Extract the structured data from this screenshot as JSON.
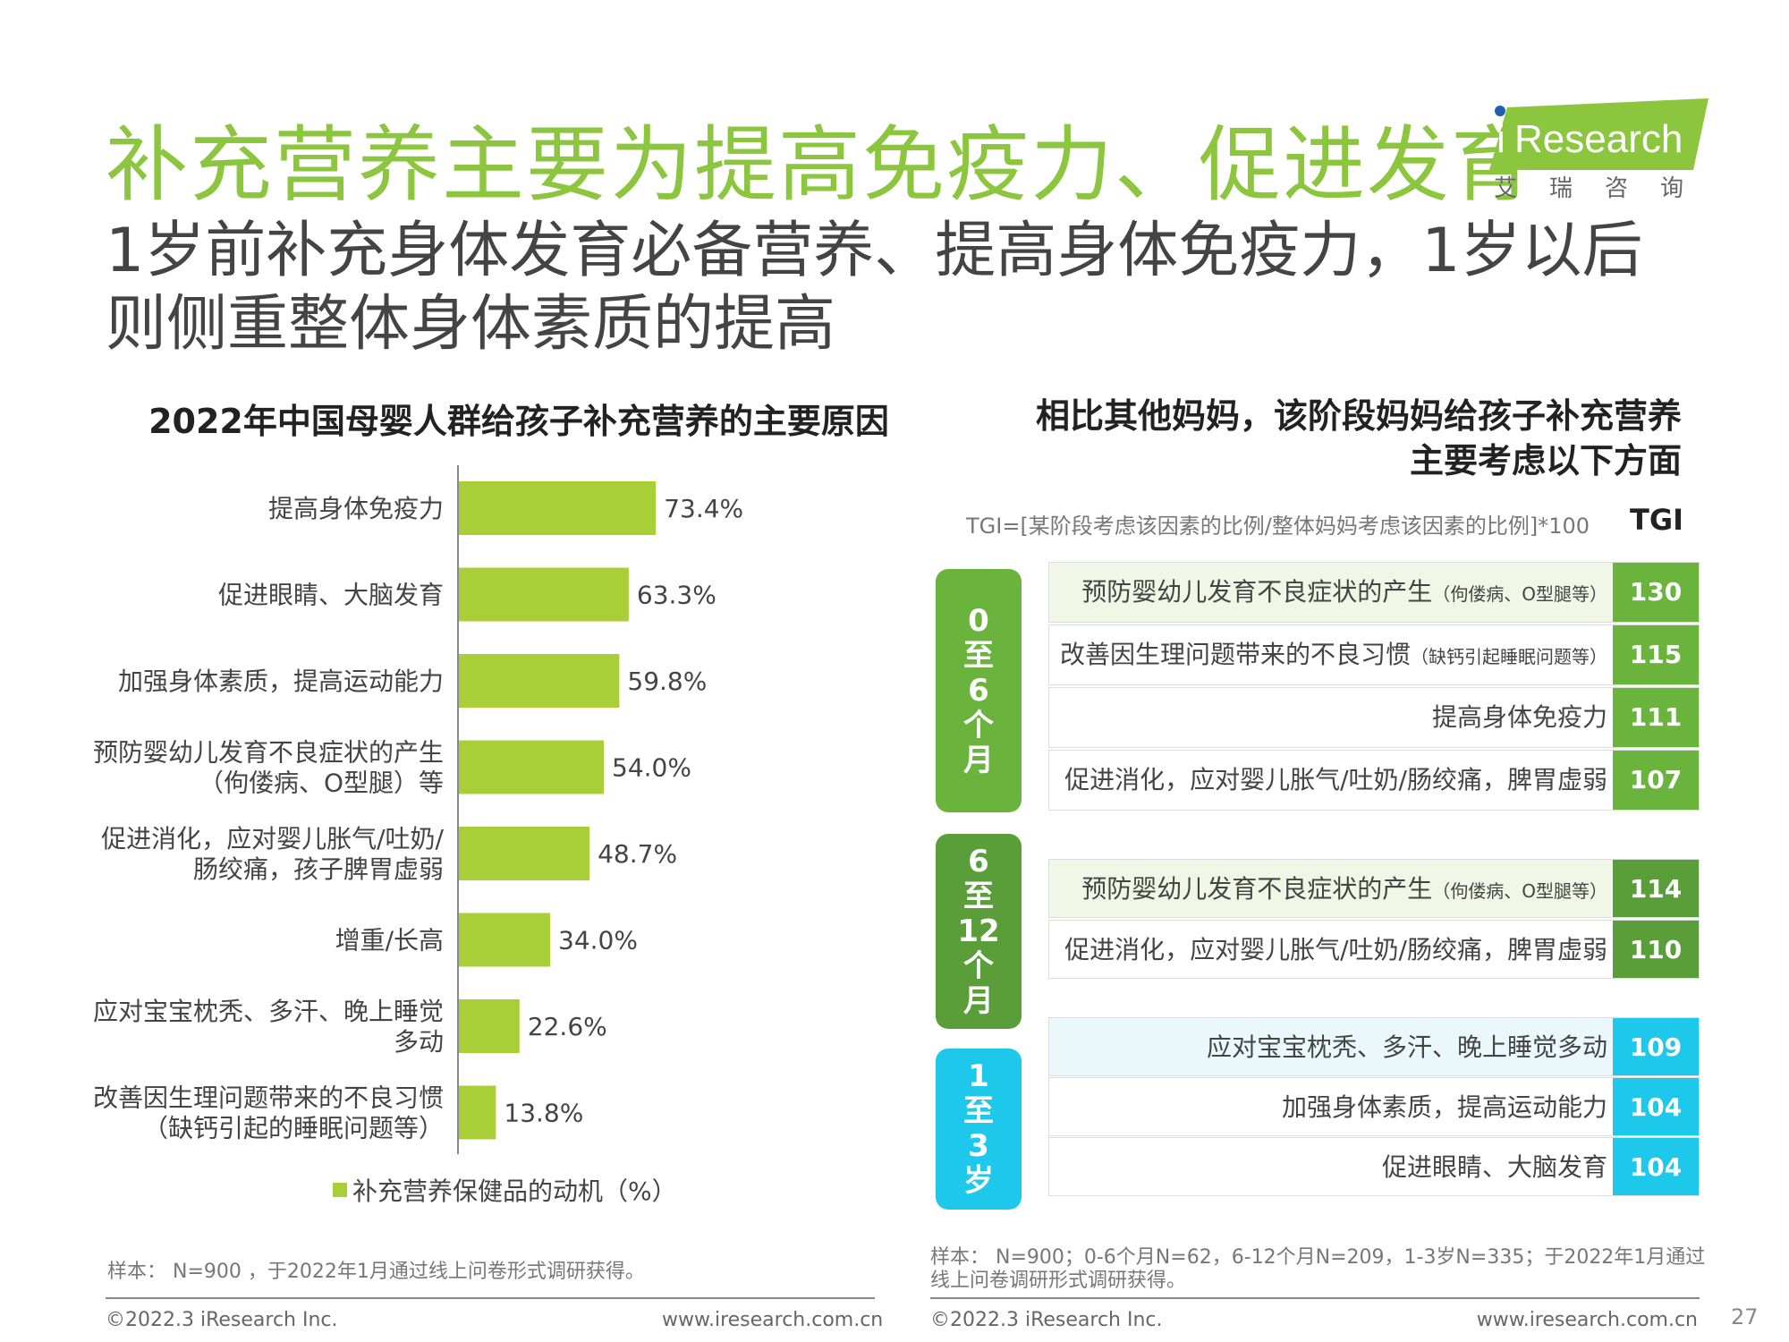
{
  "title": "补充营养主要为提高免疫力、促进发育",
  "subtitle": "1岁前补充身体发育必备营养、提高身体免疫力，1岁以后则侧重整体身体素质的提高",
  "logo": {
    "brand": "Research",
    "brand_i": "i",
    "cn": "艾瑞咨询"
  },
  "left_title": "2022年中国母婴人群给孩子补充营养的主要原因",
  "chart_data": {
    "type": "bar",
    "orientation": "horizontal",
    "categories": [
      [
        "提高身体免疫力"
      ],
      [
        "促进眼睛、大脑发育"
      ],
      [
        "加强身体素质，提高运动能力"
      ],
      [
        "预防婴幼儿发育不良症状的产生",
        "（佝偻病、O型腿）等"
      ],
      [
        "促进消化，应对婴儿胀气/吐奶/",
        "肠绞痛，孩子脾胃虚弱"
      ],
      [
        "增重/长高"
      ],
      [
        "应对宝宝枕秃、多汗、晚上睡觉",
        "多动"
      ],
      [
        "改善因生理问题带来的不良习惯",
        "（缺钙引起的睡眠问题等）"
      ]
    ],
    "values": [
      73.4,
      63.3,
      59.8,
      54.0,
      48.7,
      34.0,
      22.6,
      13.8
    ],
    "value_labels": [
      "73.4%",
      "63.3%",
      "59.8%",
      "54.0%",
      "48.7%",
      "34.0%",
      "22.6%",
      "13.8%"
    ],
    "series": [
      {
        "name": "补充营养保健品的动机（%）",
        "color": "#a9cf38"
      }
    ],
    "xlim": [
      0,
      100
    ],
    "legend_position": "bottom"
  },
  "right_title_line1": "相比其他妈妈，该阶段妈妈给孩子补充营养",
  "right_title_line2": "主要考虑以下方面",
  "tgi_formula": "TGI=[某阶段考虑该因素的比例/整体妈妈考虑该因素的比例]*100",
  "tgi_header": "TGI",
  "stages": [
    {
      "label": "0至6个月",
      "chars": [
        "0",
        "至",
        "6",
        "个",
        "月"
      ],
      "color": "#6ab43e",
      "num_color": "#6ab43e",
      "row_bg": [
        "#f0f7e6",
        "#ffffff",
        "#ffffff",
        "#ffffff"
      ],
      "rows": [
        {
          "text": "预防婴幼儿发育不良症状的产生",
          "small": "（佝偻病、O型腿等）",
          "tgi": "130"
        },
        {
          "text": "改善因生理问题带来的不良习惯",
          "small": "（缺钙引起睡眠问题等）",
          "tgi": "115"
        },
        {
          "text": "提高身体免疫力",
          "small": "",
          "tgi": "111"
        },
        {
          "text": "促进消化，应对婴儿胀气/吐奶/肠绞痛，脾胃虚弱",
          "small": "",
          "tgi": "107"
        }
      ]
    },
    {
      "label": "6至12个月",
      "chars": [
        "6",
        "至",
        "12",
        "个",
        "月"
      ],
      "color": "#5a9e3a",
      "num_color": "#5a9e3a",
      "row_bg": [
        "#f0f7e6",
        "#ffffff"
      ],
      "rows": [
        {
          "text": "预防婴幼儿发育不良症状的产生",
          "small": "（佝偻病、O型腿等）",
          "tgi": "114"
        },
        {
          "text": "促进消化，应对婴儿胀气/吐奶/肠绞痛，脾胃虚弱",
          "small": "",
          "tgi": "110"
        }
      ]
    },
    {
      "label": "1至3岁",
      "chars": [
        "1",
        "至",
        "3",
        "岁"
      ],
      "color": "#1ec8ea",
      "num_color": "#1ec8ea",
      "row_bg": [
        "#eaf8fc",
        "#ffffff",
        "#ffffff"
      ],
      "rows": [
        {
          "text": "应对宝宝枕秃、多汗、晚上睡觉多动",
          "small": "",
          "tgi": "109"
        },
        {
          "text": "加强身体素质，提高运动能力",
          "small": "",
          "tgi": "104"
        },
        {
          "text": "促进眼睛、大脑发育",
          "small": "",
          "tgi": "104"
        }
      ]
    }
  ],
  "left_note": "样本： N=900 ，于2022年1月通过线上问卷形式调研获得。",
  "right_note": "样本： N=900；0-6个月N=62，6-12个月N=209，1-3岁N=335；于2022年1月通过线上问卷调研形式调研获得。",
  "copyright": "©2022.3 iResearch Inc.",
  "website": "www.iresearch.com.cn",
  "page_number": "27"
}
